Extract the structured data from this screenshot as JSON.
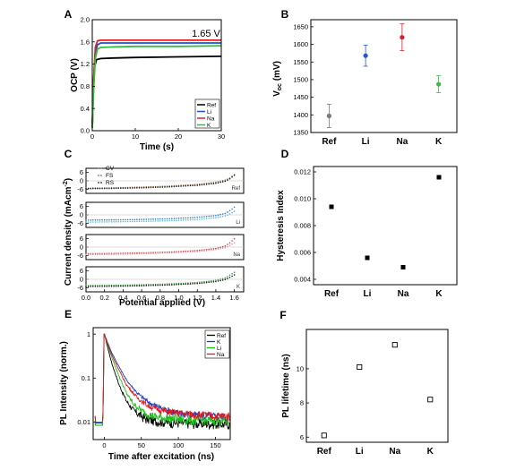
{
  "chart_data": [
    {
      "panel": "A",
      "type": "line",
      "annotation": "1.65 V",
      "xlabel": "Time (s)",
      "ylabel": "OCP (V)",
      "xlim": [
        0,
        30
      ],
      "ylim": [
        0.0,
        2.0
      ],
      "xticks": [
        "0",
        "10",
        "20",
        "30"
      ],
      "yticks": [
        "0.0",
        "0.4",
        "0.8",
        "1.2",
        "1.6",
        "2.0"
      ],
      "legend_position": "bottom-right",
      "series": [
        {
          "name": "Ref",
          "color": "#000000",
          "x": [
            0,
            0.2,
            0.5,
            1,
            2,
            5,
            10,
            20,
            30
          ],
          "y": [
            0.05,
            0.7,
            1.15,
            1.28,
            1.3,
            1.31,
            1.32,
            1.33,
            1.34
          ]
        },
        {
          "name": "Li",
          "color": "#1f4fd6",
          "x": [
            0,
            0.3,
            0.7,
            1.2,
            2,
            5,
            10,
            20,
            30
          ],
          "y": [
            0.05,
            0.8,
            1.4,
            1.55,
            1.58,
            1.58,
            1.58,
            1.58,
            1.58
          ]
        },
        {
          "name": "Na",
          "color": "#e0202a",
          "x": [
            0,
            0.3,
            0.7,
            1.2,
            2,
            5,
            10,
            20,
            30
          ],
          "y": [
            0.05,
            0.9,
            1.5,
            1.62,
            1.63,
            1.63,
            1.63,
            1.63,
            1.63
          ]
        },
        {
          "name": "K",
          "color": "#2fc03a",
          "x": [
            0,
            0.3,
            0.7,
            1.2,
            2,
            5,
            10,
            20,
            30
          ],
          "y": [
            0.05,
            0.7,
            1.3,
            1.47,
            1.5,
            1.51,
            1.52,
            1.52,
            1.53
          ]
        }
      ]
    },
    {
      "panel": "B",
      "type": "scatter",
      "ylabel": "V",
      "ylabel_sub": "oc",
      "ylabel_unit": " (mV)",
      "categories": [
        "Ref",
        "Li",
        "Na",
        "K"
      ],
      "ylim": [
        1350,
        1670
      ],
      "yticks": [
        "1350",
        "1400",
        "1450",
        "1500",
        "1550",
        "1600",
        "1650"
      ],
      "values": [
        1397,
        1568,
        1620,
        1487
      ],
      "errors": [
        33,
        30,
        38,
        24
      ],
      "colors": [
        "#7a7a7a",
        "#2a55c9",
        "#d6202a",
        "#3dbb3d"
      ]
    },
    {
      "panel": "C",
      "type": "scatter",
      "xlabel": "Potential applied (V)",
      "ylabel": "Current density (mAcm",
      "ylabel_sup": "-2",
      "ylabel_end": ")",
      "xlim": [
        0,
        1.7
      ],
      "xticks": [
        "0.0",
        "0.2",
        "0.4",
        "0.6",
        "0.8",
        "1.0",
        "1.2",
        "1.4",
        "1.6"
      ],
      "yticks": [
        "6",
        "0",
        "-6"
      ],
      "legend": [
        "CV",
        "FS",
        "RS"
      ],
      "subplots": [
        {
          "label": "Ref",
          "cv_color": "#777777",
          "fs_color": "#8a6a40",
          "rs_color": "#222222",
          "x": [
            0,
            0.3,
            0.6,
            0.9,
            1.2,
            1.4,
            1.5,
            1.55,
            1.6
          ],
          "fs": [
            -5.3,
            -5.0,
            -4.5,
            -3.8,
            -2.6,
            -1.0,
            0.5,
            2.0,
            4.5
          ],
          "rs": [
            -5.6,
            -5.4,
            -5.0,
            -4.3,
            -3.2,
            -1.8,
            -0.3,
            1.5,
            4.0
          ]
        },
        {
          "label": "Li",
          "cv_color": "#777777",
          "fs_color": "#2a7ad8",
          "rs_color": "#5fc0d0",
          "x": [
            0,
            0.3,
            0.6,
            0.9,
            1.2,
            1.4,
            1.5,
            1.55,
            1.6
          ],
          "fs": [
            -3.8,
            -3.6,
            -3.3,
            -2.8,
            -1.8,
            -0.5,
            1.0,
            3.0,
            5.5
          ],
          "rs": [
            -5.2,
            -5.0,
            -4.7,
            -4.2,
            -3.4,
            -2.0,
            -0.8,
            0.6,
            2.5
          ]
        },
        {
          "label": "Na",
          "cv_color": "#777777",
          "fs_color": "#d23a3a",
          "rs_color": "#e89aa0",
          "x": [
            0,
            0.3,
            0.6,
            0.9,
            1.2,
            1.4,
            1.5,
            1.55,
            1.6
          ],
          "fs": [
            -4.8,
            -4.6,
            -4.2,
            -3.6,
            -2.5,
            -1.0,
            0.8,
            3.0,
            6.0
          ],
          "rs": [
            -5.4,
            -5.2,
            -4.8,
            -4.2,
            -3.2,
            -1.8,
            -0.4,
            1.2,
            3.0
          ]
        },
        {
          "label": "K",
          "cv_color": "#777777",
          "fs_color": "#3a9a3a",
          "rs_color": "#1a1a1a",
          "x": [
            0,
            0.3,
            0.6,
            0.9,
            1.2,
            1.4,
            1.5,
            1.55,
            1.6
          ],
          "fs": [
            -4.5,
            -4.3,
            -3.9,
            -3.3,
            -2.3,
            -0.8,
            0.9,
            3.0,
            5.0
          ],
          "rs": [
            -5.2,
            -5.0,
            -4.6,
            -4.0,
            -3.0,
            -1.6,
            -0.2,
            1.4,
            3.2
          ]
        }
      ]
    },
    {
      "panel": "D",
      "type": "scatter",
      "ylabel": "Hysteresis Index",
      "categories": [
        "Ref",
        "Li",
        "Na",
        "K"
      ],
      "ylim": [
        0.0036,
        0.0124
      ],
      "yticks": [
        "0.004",
        "0.006",
        "0.008",
        "0.010",
        "0.012"
      ],
      "values": [
        0.0094,
        0.0056,
        0.0049,
        0.0116
      ]
    },
    {
      "panel": "E",
      "type": "line",
      "xlabel": "Time after excitation (ns)",
      "ylabel": "PL Intensity (norm.)",
      "yscale": "log",
      "xlim": [
        -15,
        170
      ],
      "ylim": [
        0.004,
        1.4
      ],
      "xticks": [
        "0",
        "50",
        "100",
        "150"
      ],
      "yticks": [
        "1",
        "0.1",
        "0.01"
      ],
      "legend_position": "top-right",
      "series": [
        {
          "name": "Ref",
          "color": "#000000",
          "x": [
            -12,
            -2,
            0,
            10,
            20,
            30,
            40,
            55,
            70,
            90,
            120,
            165
          ],
          "y": [
            0.0085,
            0.0085,
            1.0,
            0.22,
            0.07,
            0.03,
            0.018,
            0.012,
            0.0105,
            0.0097,
            0.0093,
            0.009
          ]
        },
        {
          "name": "K",
          "color": "#1a3ad0",
          "x": [
            -12,
            -2,
            0,
            10,
            20,
            30,
            45,
            60,
            80,
            100,
            130,
            165
          ],
          "y": [
            0.0095,
            0.0095,
            1.0,
            0.38,
            0.18,
            0.09,
            0.045,
            0.028,
            0.02,
            0.016,
            0.014,
            0.013
          ]
        },
        {
          "name": "Li",
          "color": "#18c018",
          "x": [
            -12,
            -2,
            0,
            10,
            20,
            30,
            40,
            55,
            70,
            90,
            120,
            165
          ],
          "y": [
            0.0085,
            0.0085,
            1.0,
            0.3,
            0.11,
            0.045,
            0.025,
            0.016,
            0.013,
            0.012,
            0.011,
            0.0105
          ]
        },
        {
          "name": "Na",
          "color": "#e01818",
          "x": [
            -12,
            -2,
            0,
            10,
            20,
            30,
            45,
            60,
            80,
            100,
            130,
            165
          ],
          "y": [
            0.01,
            0.01,
            1.0,
            0.34,
            0.15,
            0.07,
            0.035,
            0.023,
            0.018,
            0.016,
            0.0145,
            0.0135
          ]
        }
      ]
    },
    {
      "panel": "F",
      "type": "scatter",
      "ylabel": "PL lifetime (ns)",
      "categories": [
        "Ref",
        "Li",
        "Na",
        "K"
      ],
      "ylim": [
        5.7,
        12.3
      ],
      "yticks": [
        "6",
        "8",
        "10"
      ],
      "values": [
        6.1,
        10.1,
        11.4,
        8.2
      ]
    }
  ]
}
